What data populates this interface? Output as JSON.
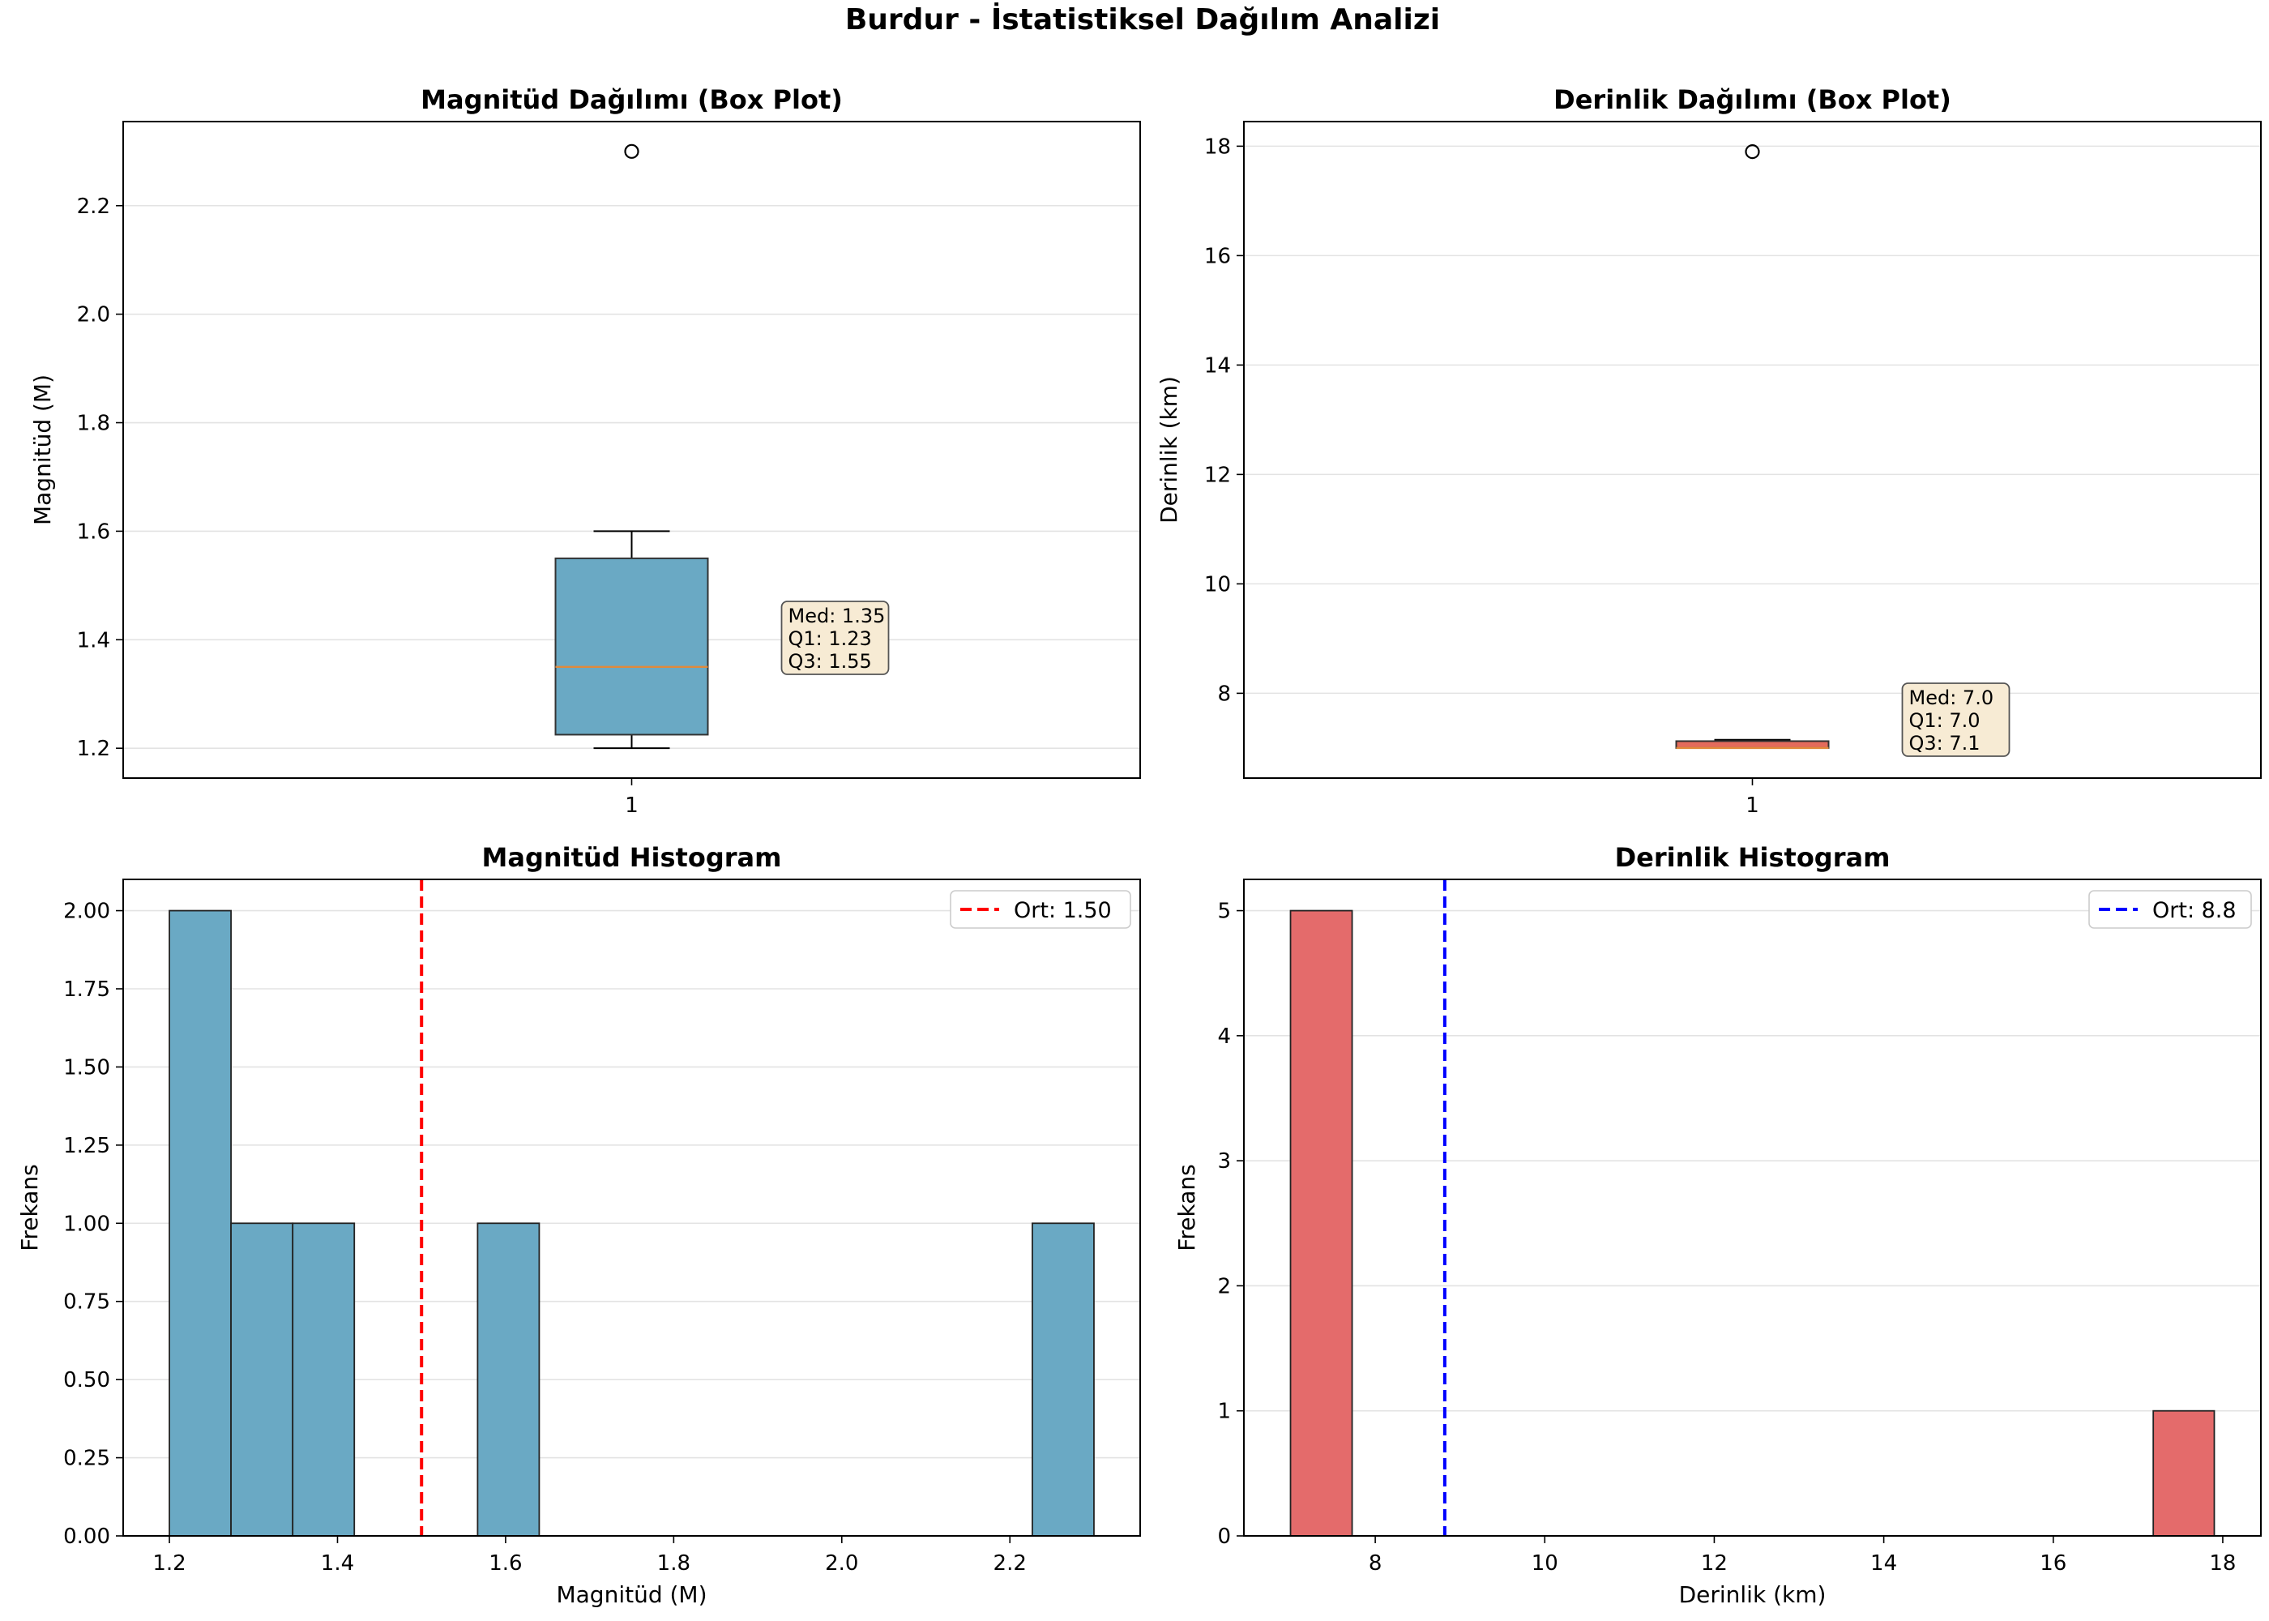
{
  "figure": {
    "suptitle": "Burdur - İstatistiksel Dağılım Analizi"
  },
  "chart_data": [
    {
      "type": "box",
      "title": "Magnitüd Dağılımı (Box Plot)",
      "xlabel": "",
      "ylabel": "Magnitüd (M)",
      "categories": [
        "1"
      ],
      "ylim": [
        1.145,
        2.355
      ],
      "yticks": [
        1.2,
        1.4,
        1.6,
        1.8,
        2.0,
        2.2
      ],
      "ytick_labels": [
        "1.2",
        "1.4",
        "1.6",
        "1.8",
        "2.0",
        "2.2"
      ],
      "box": {
        "whisker_low": 1.2,
        "q1": 1.225,
        "median": 1.35,
        "q3": 1.55,
        "whisker_high": 1.6,
        "outliers": [
          2.3
        ]
      },
      "annotation": [
        "Med: 1.35",
        "Q1: 1.23",
        "Q3: 1.55"
      ],
      "box_color": "#6aa9c4",
      "median_color": "#e08a3c",
      "grid": "y"
    },
    {
      "type": "box",
      "title": "Derinlik Dağılımı (Box Plot)",
      "xlabel": "",
      "ylabel": "Derinlik (km)",
      "categories": [
        "1"
      ],
      "ylim": [
        6.45,
        18.45
      ],
      "yticks": [
        8,
        10,
        12,
        14,
        16,
        18
      ],
      "ytick_labels": [
        "8",
        "10",
        "12",
        "14",
        "16",
        "18"
      ],
      "box": {
        "whisker_low": 7.0,
        "q1": 7.0,
        "median": 7.0,
        "q3": 7.125,
        "whisker_high": 7.15,
        "outliers": [
          17.9
        ]
      },
      "annotation": [
        "Med: 7.0",
        "Q1: 7.0",
        "Q3: 7.1"
      ],
      "box_color": "#e46b5c",
      "median_color": "#e08a3c",
      "grid": "y"
    },
    {
      "type": "histogram",
      "title": "Magnitüd Histogram",
      "xlabel": "Magnitüd (M)",
      "ylabel": "Frekans",
      "xlim": [
        1.145,
        2.355
      ],
      "ylim": [
        0,
        2.1
      ],
      "xticks": [
        1.2,
        1.4,
        1.6,
        1.8,
        2.0,
        2.2
      ],
      "xtick_labels": [
        "1.2",
        "1.4",
        "1.6",
        "1.8",
        "2.0",
        "2.2"
      ],
      "yticks": [
        0,
        0.25,
        0.5,
        0.75,
        1.0,
        1.25,
        1.5,
        1.75,
        2.0
      ],
      "ytick_labels": [
        "0.00",
        "0.25",
        "0.50",
        "0.75",
        "1.00",
        "1.25",
        "1.50",
        "1.75",
        "2.00"
      ],
      "bins": [
        {
          "x0": 1.2,
          "x1": 1.2733,
          "count": 2
        },
        {
          "x0": 1.2733,
          "x1": 1.3467,
          "count": 1
        },
        {
          "x0": 1.3467,
          "x1": 1.42,
          "count": 1
        },
        {
          "x0": 1.5667,
          "x1": 1.64,
          "count": 1
        },
        {
          "x0": 2.2267,
          "x1": 2.3,
          "count": 1
        }
      ],
      "mean_line": {
        "value": 1.5,
        "label": "Ort: 1.50",
        "color": "#ff0000"
      },
      "bar_color": "#6aa9c4",
      "legend_position": "top-right",
      "grid": "y"
    },
    {
      "type": "histogram",
      "title": "Derinlik Histogram",
      "xlabel": "Derinlik (km)",
      "ylabel": "Frekans",
      "xlim": [
        6.45,
        18.45
      ],
      "ylim": [
        0,
        5.25
      ],
      "xticks": [
        8,
        10,
        12,
        14,
        16,
        18
      ],
      "xtick_labels": [
        "8",
        "10",
        "12",
        "14",
        "16",
        "18"
      ],
      "yticks": [
        0,
        1,
        2,
        3,
        4,
        5
      ],
      "ytick_labels": [
        "0",
        "1",
        "2",
        "3",
        "4",
        "5"
      ],
      "bins": [
        {
          "x0": 7.0,
          "x1": 7.727,
          "count": 5
        },
        {
          "x0": 17.18,
          "x1": 17.9,
          "count": 1
        }
      ],
      "mean_line": {
        "value": 8.82,
        "label": "Ort: 8.8",
        "color": "#0000ff"
      },
      "bar_color": "#e46b6b",
      "legend_position": "top-right",
      "grid": "y"
    }
  ]
}
